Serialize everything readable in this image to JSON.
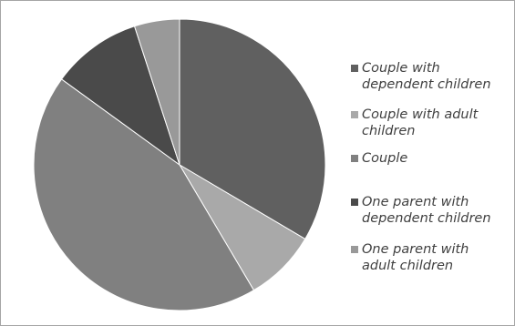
{
  "chart_data": {
    "type": "pie",
    "title": "",
    "legend_position": "right",
    "start_angle_deg": 0,
    "direction": "clockwise",
    "slices": [
      {
        "label": "Couple with dependent children",
        "value": 33.5,
        "color": "#606060"
      },
      {
        "label": "Couple with adult children",
        "value": 8.0,
        "color": "#a9a9a9"
      },
      {
        "label": "Couple",
        "value": 43.5,
        "color": "#808080"
      },
      {
        "label": "One parent with dependent children",
        "value": 10.0,
        "color": "#4a4a4a"
      },
      {
        "label": "One parent with adult children",
        "value": 5.0,
        "color": "#999999"
      }
    ]
  },
  "legend": {
    "items": [
      {
        "line1": "Couple with",
        "line2": "dependent children",
        "color": "#606060"
      },
      {
        "line1": "Couple with adult",
        "line2": "children",
        "color": "#a9a9a9"
      },
      {
        "line1": "Couple",
        "line2": "",
        "color": "#808080"
      },
      {
        "line1": "One parent with",
        "line2": "dependent children",
        "color": "#4a4a4a"
      },
      {
        "line1": "One parent with",
        "line2": "adult children",
        "color": "#999999"
      }
    ]
  }
}
